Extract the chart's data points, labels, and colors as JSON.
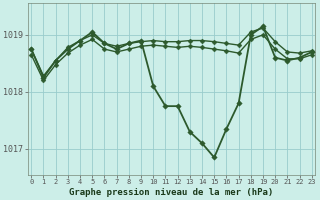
{
  "title": "Graphe pression niveau de la mer (hPa)",
  "background_color": "#cceee8",
  "grid_color": "#99cccc",
  "line_color": "#2d5a2d",
  "xlim": [
    -0.3,
    23.3
  ],
  "ylim": [
    1016.55,
    1019.55
  ],
  "yticks": [
    1017,
    1018,
    1019
  ],
  "ytick_labels": [
    "1017",
    "1018",
    "1019"
  ],
  "xticks": [
    0,
    1,
    2,
    3,
    4,
    5,
    6,
    7,
    8,
    9,
    10,
    11,
    12,
    13,
    14,
    15,
    16,
    17,
    18,
    19,
    20,
    21,
    22,
    23
  ],
  "series": [
    {
      "x": [
        0,
        1,
        2,
        3,
        4,
        5,
        6,
        7,
        8,
        9,
        10,
        11,
        12,
        13,
        14,
        15,
        16,
        17,
        18,
        19,
        20,
        21,
        22,
        23
      ],
      "y": [
        1018.75,
        1018.25,
        1018.55,
        1018.75,
        1018.9,
        1019.05,
        1018.85,
        1018.75,
        1018.85,
        1018.9,
        1018.1,
        1017.75,
        1017.75,
        1017.3,
        1017.1,
        1016.85,
        1017.35,
        1017.8,
        1019.0,
        1019.15,
        1018.6,
        1018.55,
        1018.6,
        1018.7
      ],
      "linewidth": 1.3,
      "markersize": 2.8
    },
    {
      "x": [
        0,
        1,
        2,
        3,
        4,
        5,
        6,
        7,
        8,
        9,
        10,
        11,
        12,
        13,
        14,
        15,
        16,
        17,
        18,
        19,
        20,
        21,
        22,
        23
      ],
      "y": [
        1018.75,
        1018.28,
        1018.55,
        1018.78,
        1018.9,
        1019.0,
        1018.85,
        1018.8,
        1018.85,
        1018.88,
        1018.9,
        1018.88,
        1018.88,
        1018.9,
        1018.9,
        1018.88,
        1018.85,
        1018.82,
        1019.05,
        1019.12,
        1018.88,
        1018.7,
        1018.68,
        1018.72
      ],
      "linewidth": 1.0,
      "markersize": 2.5
    },
    {
      "x": [
        0,
        1,
        2,
        3,
        4,
        5,
        6,
        7,
        8,
        9,
        10,
        11,
        12,
        13,
        14,
        15,
        16,
        17,
        18,
        19,
        20,
        21,
        22,
        23
      ],
      "y": [
        1018.65,
        1018.2,
        1018.48,
        1018.68,
        1018.82,
        1018.92,
        1018.75,
        1018.7,
        1018.75,
        1018.8,
        1018.82,
        1018.8,
        1018.78,
        1018.8,
        1018.78,
        1018.75,
        1018.72,
        1018.68,
        1018.92,
        1019.0,
        1018.75,
        1018.58,
        1018.58,
        1018.65
      ],
      "linewidth": 1.0,
      "markersize": 2.5
    }
  ]
}
